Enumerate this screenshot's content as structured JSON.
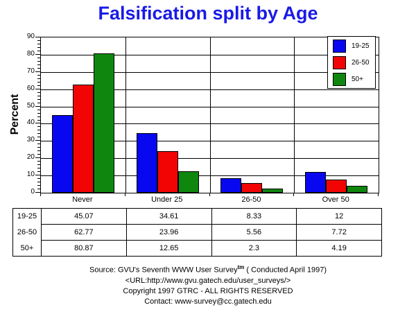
{
  "title": "Falsification split by Age",
  "colors": {
    "title_blue": "#1a1ae6",
    "series_blue": "#0808f0",
    "series_red": "#f20404",
    "series_green": "#0f870f",
    "axis": "#000000"
  },
  "chart_data": {
    "type": "bar",
    "title": "Falsification split by Age",
    "xlabel": "",
    "ylabel": "Percent",
    "ylim": [
      0,
      90
    ],
    "ytick_step": 10,
    "minor_tick_step": 2,
    "grid": "horizontal",
    "legend_position": "top-right-inside",
    "categories": [
      "Never",
      "Under 25",
      "26-50",
      "Over 50"
    ],
    "series": [
      {
        "name": "19-25",
        "color": "#0808f0",
        "values": [
          45.07,
          34.61,
          8.33,
          12
        ]
      },
      {
        "name": "26-50",
        "color": "#f20404",
        "values": [
          62.77,
          23.96,
          5.56,
          7.72
        ]
      },
      {
        "name": "50+",
        "color": "#0f870f",
        "values": [
          80.87,
          12.65,
          2.3,
          4.19
        ]
      }
    ]
  },
  "table": {
    "row_labels": [
      "19-25",
      "26-50",
      "50+"
    ],
    "column_headers": [
      "Never",
      "Under 25",
      "26-50",
      "Over 50"
    ],
    "rows": [
      [
        "45.07",
        "34.61",
        "8.33",
        "12"
      ],
      [
        "62.77",
        "23.96",
        "5.56",
        "7.72"
      ],
      [
        "80.87",
        "12.65",
        "2.3",
        "4.19"
      ]
    ]
  },
  "footer": {
    "source_text": "Source: GVU's Seventh WWW User Survey",
    "source_sup": "tm",
    "source_tail": " ( Conducted April 1997)",
    "url": "<URL:http://www.gvu.gatech.edu/user_surveys/>",
    "copyright": "Copyright 1997 GTRC - ALL RIGHTS RESERVED",
    "contact": "Contact: www-survey@cc.gatech.edu"
  }
}
